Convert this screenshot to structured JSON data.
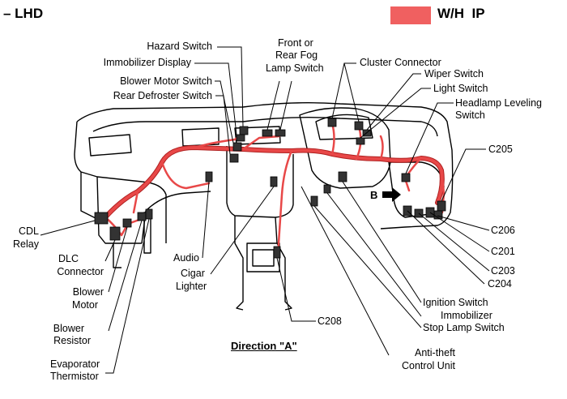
{
  "header": {
    "orientation": "– LHD",
    "legend_label": "W/H  IP",
    "legend_color": "#f06060"
  },
  "colors": {
    "harness": "#e84848",
    "harness_outline": "#b02020",
    "line": "#000000"
  },
  "labels": {
    "hazard_switch": "Hazard Switch",
    "immobilizer_display": "Immobilizer Display",
    "blower_motor_switch": "Blower Motor Switch",
    "rear_defroster_switch": "Rear Defroster Switch",
    "front_rear_fog_1": "Front or",
    "front_rear_fog_2": "Rear Fog",
    "front_rear_fog_3": "Lamp Switch",
    "cluster_connector": "Cluster Connector",
    "wiper_switch": "Wiper Switch",
    "light_switch": "Light Switch",
    "headlamp_leveling_1": "Headlamp Leveling",
    "headlamp_leveling_2": "Switch",
    "c205": "C205",
    "cdl_relay_1": "CDL",
    "cdl_relay_2": "Relay",
    "dlc_connector_1": "DLC",
    "dlc_connector_2": "Connector",
    "blower_motor_1": "Blower",
    "blower_motor_2": "Motor",
    "blower_resistor_1": "Blower",
    "blower_resistor_2": "Resistor",
    "evaporator_1": "Evaporator",
    "evaporator_2": "Thermistor",
    "audio": "Audio",
    "cigar_lighter_1": "Cigar",
    "cigar_lighter_2": "Lighter",
    "c206": "C206",
    "c201": "C201",
    "c203": "C203",
    "c204": "C204",
    "ignition_switch": "Ignition Switch",
    "immobilizer": "Immobilizer",
    "stop_lamp_switch": "Stop Lamp Switch",
    "c208": "C208",
    "anti_theft_1": "Anti-theft",
    "anti_theft_2": "Control Unit",
    "direction": "Direction \"A\"",
    "b_marker": "B"
  }
}
